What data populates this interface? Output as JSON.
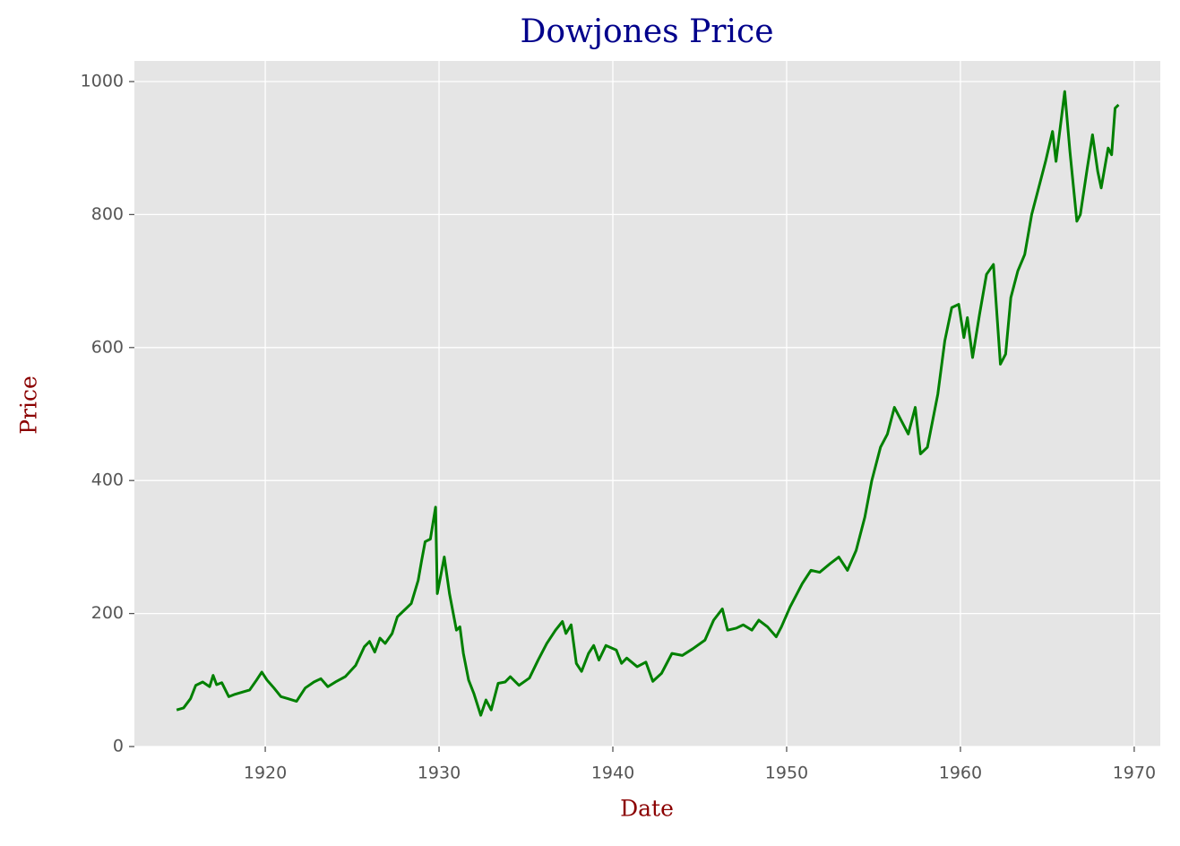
{
  "chart_data": {
    "type": "line",
    "title": "Dowjones Price",
    "xlabel": "Date",
    "ylabel": "Price",
    "x": [
      1914.9,
      1915.3,
      1915.7,
      1916.0,
      1916.4,
      1916.8,
      1917.0,
      1917.2,
      1917.5,
      1917.9,
      1918.2,
      1918.7,
      1919.1,
      1919.5,
      1919.8,
      1920.1,
      1920.5,
      1920.9,
      1921.3,
      1921.8,
      1922.3,
      1922.8,
      1923.2,
      1923.6,
      1924.1,
      1924.6,
      1925.2,
      1925.7,
      1926.0,
      1926.3,
      1926.6,
      1926.9,
      1927.3,
      1927.6,
      1928.0,
      1928.4,
      1928.8,
      1929.0,
      1929.2,
      1929.5,
      1929.8,
      1929.9,
      1930.3,
      1930.6,
      1931.0,
      1931.2,
      1931.4,
      1931.7,
      1932.0,
      1932.4,
      1932.7,
      1933.0,
      1933.4,
      1933.8,
      1934.1,
      1934.6,
      1935.2,
      1935.7,
      1936.2,
      1936.7,
      1937.1,
      1937.3,
      1937.6,
      1937.9,
      1938.2,
      1938.6,
      1938.9,
      1939.2,
      1939.6,
      1940.2,
      1940.5,
      1940.8,
      1941.4,
      1941.9,
      1942.3,
      1942.8,
      1943.4,
      1944.0,
      1944.6,
      1945.3,
      1945.8,
      1946.3,
      1946.6,
      1947.1,
      1947.5,
      1948.0,
      1948.4,
      1948.9,
      1949.4,
      1949.7,
      1950.2,
      1950.5,
      1950.9,
      1951.4,
      1951.9,
      1952.5,
      1953.0,
      1953.5,
      1954.0,
      1954.5,
      1954.9,
      1955.4,
      1955.8,
      1956.2,
      1956.6,
      1957.0,
      1957.4,
      1957.7,
      1958.1,
      1958.7,
      1959.1,
      1959.5,
      1959.9,
      1960.2,
      1960.4,
      1960.7,
      1961.1,
      1961.5,
      1961.9,
      1962.3,
      1962.6,
      1962.9,
      1963.3,
      1963.7,
      1964.1,
      1964.5,
      1964.9,
      1965.3,
      1965.5,
      1966.0,
      1966.3,
      1966.7,
      1966.9,
      1967.3,
      1967.6,
      1967.9,
      1968.1,
      1968.5,
      1968.7,
      1968.9,
      1969.1
    ],
    "values": [
      55,
      58,
      72,
      92,
      97,
      90,
      107,
      93,
      96,
      75,
      78,
      82,
      85,
      100,
      112,
      100,
      88,
      75,
      72,
      68,
      88,
      97,
      102,
      90,
      98,
      105,
      122,
      150,
      158,
      142,
      163,
      155,
      170,
      195,
      205,
      215,
      250,
      280,
      308,
      312,
      360,
      230,
      285,
      230,
      175,
      180,
      140,
      100,
      80,
      47,
      70,
      55,
      95,
      97,
      105,
      92,
      103,
      130,
      155,
      175,
      188,
      170,
      183,
      125,
      113,
      140,
      152,
      130,
      152,
      145,
      125,
      133,
      120,
      127,
      98,
      110,
      140,
      137,
      147,
      160,
      190,
      207,
      175,
      178,
      183,
      175,
      190,
      180,
      165,
      180,
      210,
      225,
      245,
      265,
      262,
      275,
      285,
      265,
      295,
      345,
      400,
      450,
      470,
      510,
      490,
      470,
      510,
      440,
      450,
      530,
      610,
      660,
      665,
      615,
      645,
      585,
      650,
      710,
      725,
      575,
      590,
      675,
      715,
      740,
      800,
      840,
      880,
      925,
      880,
      985,
      895,
      790,
      800,
      870,
      920,
      865,
      840,
      900,
      890,
      960,
      965
    ],
    "color": "#008000",
    "xlim": [
      1912.47,
      1971.5
    ],
    "ylim": [
      0,
      1031
    ],
    "xticks": [
      1920,
      1930,
      1940,
      1950,
      1960,
      1970
    ],
    "yticks": [
      0,
      200,
      400,
      600,
      800,
      1000
    ],
    "grid": true
  }
}
